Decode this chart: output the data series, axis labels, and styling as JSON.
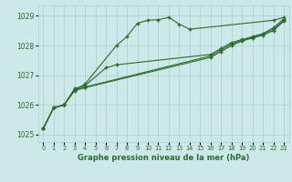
{
  "line1_x": [
    0,
    1,
    2,
    3,
    4,
    7,
    8,
    9,
    10,
    11,
    12,
    13,
    14,
    22,
    23
  ],
  "line1_y": [
    1025.2,
    1025.9,
    1026.0,
    1026.5,
    1026.7,
    1028.0,
    1028.3,
    1028.75,
    1028.85,
    1028.87,
    1028.95,
    1028.72,
    1028.55,
    1028.85,
    1028.95
  ],
  "line2_x": [
    0,
    1,
    2,
    3,
    4,
    6,
    7,
    16,
    17,
    18,
    19,
    20,
    21,
    22,
    23
  ],
  "line2_y": [
    1025.2,
    1025.9,
    1026.0,
    1026.55,
    1026.65,
    1027.25,
    1027.35,
    1027.7,
    1027.9,
    1028.1,
    1028.2,
    1028.3,
    1028.4,
    1028.6,
    1028.9
  ],
  "line3_x": [
    0,
    1,
    2,
    3,
    4,
    16,
    17,
    18,
    19,
    20,
    21,
    22,
    23
  ],
  "line3_y": [
    1025.2,
    1025.9,
    1026.0,
    1026.5,
    1026.6,
    1027.65,
    1027.85,
    1028.05,
    1028.18,
    1028.28,
    1028.38,
    1028.55,
    1028.85
  ],
  "line4_x": [
    0,
    1,
    2,
    3,
    4,
    16,
    17,
    18,
    19,
    20,
    21,
    22,
    23
  ],
  "line4_y": [
    1025.2,
    1025.9,
    1026.0,
    1026.48,
    1026.58,
    1027.6,
    1027.8,
    1028.0,
    1028.15,
    1028.25,
    1028.35,
    1028.5,
    1028.82
  ],
  "line_color": "#2d6a2d",
  "bg_color": "#cce8e8",
  "grid_color": "#aacece",
  "xlabel": "Graphe pression niveau de la mer (hPa)",
  "ylim": [
    1024.75,
    1029.35
  ],
  "xlim": [
    -0.5,
    23.5
  ],
  "yticks": [
    1025,
    1026,
    1027,
    1028,
    1029
  ],
  "xticks": [
    0,
    1,
    2,
    3,
    4,
    5,
    6,
    7,
    8,
    9,
    10,
    11,
    12,
    13,
    14,
    15,
    16,
    17,
    18,
    19,
    20,
    21,
    22,
    23
  ]
}
